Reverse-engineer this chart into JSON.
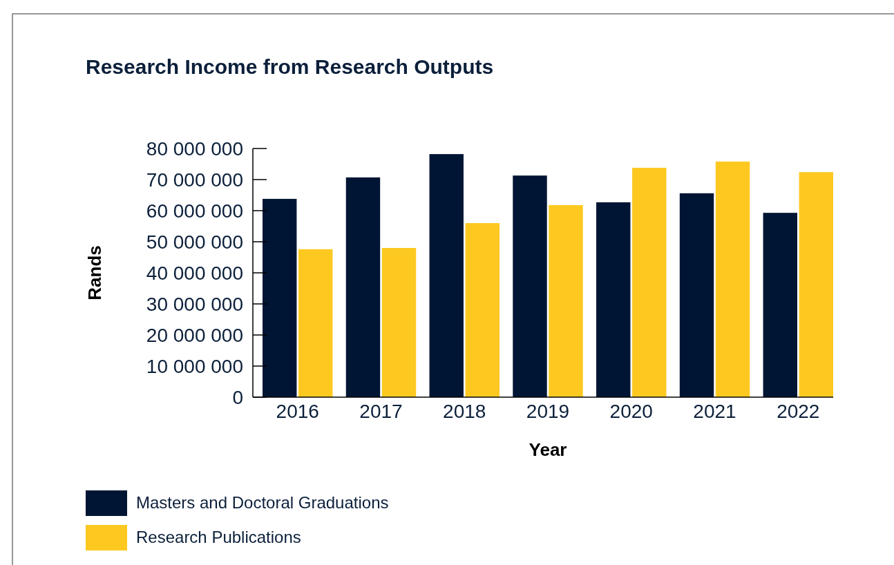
{
  "chart_data": {
    "type": "bar",
    "title": "Research Income from Research Outputs",
    "xlabel": "Year",
    "ylabel": "Rands",
    "categories": [
      "2016",
      "2017",
      "2018",
      "2019",
      "2020",
      "2021",
      "2022"
    ],
    "series": [
      {
        "name": "Masters and Doctoral Graduations",
        "color": "#001533",
        "values": [
          63800000,
          70700000,
          78200000,
          71300000,
          62700000,
          65600000,
          59300000
        ]
      },
      {
        "name": "Research Publications",
        "color": "#fdc921",
        "values": [
          47600000,
          48000000,
          56000000,
          61800000,
          73800000,
          75800000,
          72400000
        ]
      }
    ],
    "ylim": [
      0,
      80000000
    ],
    "yticks": [
      {
        "value": 0,
        "label": "0"
      },
      {
        "value": 10000000,
        "label": "10 000 000"
      },
      {
        "value": 20000000,
        "label": "20 000 000"
      },
      {
        "value": 30000000,
        "label": "30 000 000"
      },
      {
        "value": 40000000,
        "label": "40 000 000"
      },
      {
        "value": 50000000,
        "label": "50 000 000"
      },
      {
        "value": 60000000,
        "label": "60 000 000"
      },
      {
        "value": 70000000,
        "label": "70 000 000"
      },
      {
        "value": 80000000,
        "label": "80 000 000"
      }
    ],
    "grid": false,
    "legend": "bottom left"
  }
}
